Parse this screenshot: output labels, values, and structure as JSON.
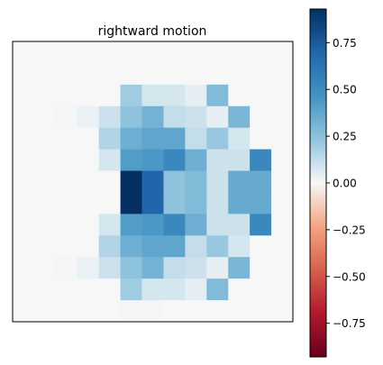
{
  "chart_data": {
    "type": "heatmap",
    "title": "rightward motion",
    "xlabel": "",
    "ylabel": "",
    "show_axis_ticks": false,
    "grid": false,
    "colormap": "RdBu",
    "vmin": -0.93,
    "vmax": 0.93,
    "rows": 13,
    "cols": 13,
    "values": [
      [
        0,
        0,
        0,
        0,
        0,
        0,
        0,
        0,
        0,
        0,
        0,
        0,
        0
      ],
      [
        0,
        0,
        0,
        0,
        0,
        0,
        0,
        0,
        0,
        0,
        0,
        0,
        0
      ],
      [
        0,
        0,
        0,
        0,
        0,
        0.2,
        0.08,
        0.08,
        0.04,
        0.28,
        0,
        0,
        0
      ],
      [
        0,
        0,
        0.01,
        0.03,
        0.1,
        0.24,
        0.32,
        0.12,
        0.1,
        0.04,
        0.3,
        0,
        0
      ],
      [
        0,
        0,
        0,
        0,
        0.16,
        0.34,
        0.38,
        0.38,
        0.12,
        0.22,
        0.08,
        0,
        0
      ],
      [
        0,
        0,
        0,
        0,
        0.08,
        0.42,
        0.44,
        0.52,
        0.34,
        0.1,
        0.1,
        0.52,
        0
      ],
      [
        0,
        0,
        0,
        0,
        0,
        0.93,
        0.7,
        0.24,
        0.28,
        0.1,
        0.36,
        0.36,
        0
      ],
      [
        0,
        0,
        0,
        0,
        0,
        0.93,
        0.7,
        0.24,
        0.28,
        0.1,
        0.36,
        0.36,
        0
      ],
      [
        0,
        0,
        0,
        0,
        0.08,
        0.42,
        0.44,
        0.52,
        0.34,
        0.1,
        0.1,
        0.52,
        0
      ],
      [
        0,
        0,
        0,
        0,
        0.16,
        0.34,
        0.38,
        0.38,
        0.12,
        0.22,
        0.08,
        0,
        0
      ],
      [
        0,
        0,
        0.01,
        0.03,
        0.1,
        0.24,
        0.32,
        0.12,
        0.1,
        0.04,
        0.3,
        0,
        0
      ],
      [
        0,
        0,
        0,
        0,
        0,
        0.2,
        0.08,
        0.08,
        0.04,
        0.28,
        0,
        0,
        0
      ],
      [
        0,
        0,
        0,
        0,
        0,
        0.01,
        0.01,
        0,
        0,
        0,
        0,
        0,
        0
      ]
    ],
    "colorbar": {
      "ticks": [
        0.75,
        0.5,
        0.25,
        0.0,
        -0.25,
        -0.5,
        -0.75
      ],
      "tick_labels": [
        "0.75",
        "0.50",
        "0.25",
        "0.00",
        "−0.25",
        "−0.50",
        "−0.75"
      ]
    }
  }
}
